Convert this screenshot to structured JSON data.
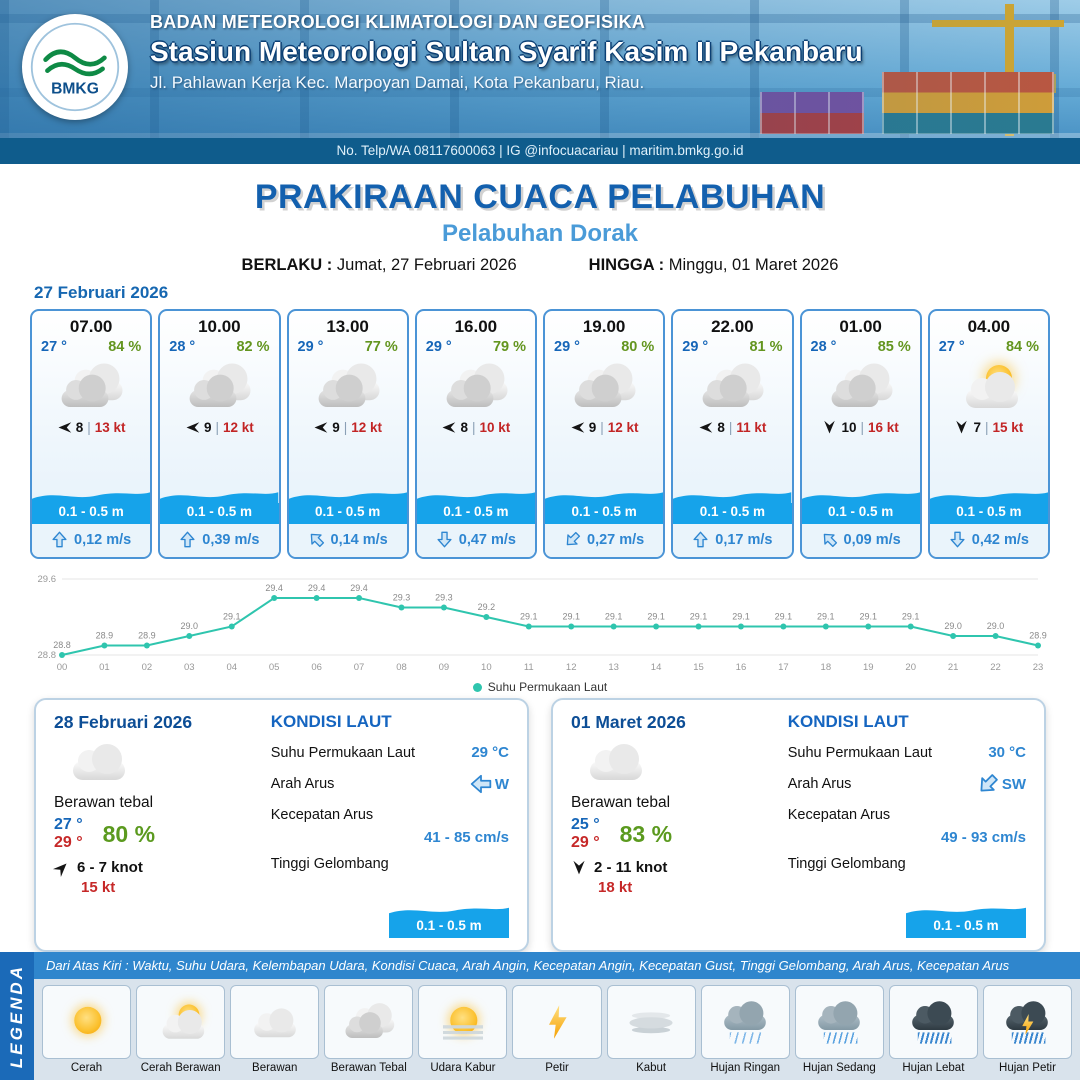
{
  "header": {
    "logo_text": "BMKG",
    "agency": "BADAN METEOROLOGI KLIMATOLOGI DAN GEOFISIKA",
    "station": "Stasiun Meteorologi Sultan Syarif Kasim II Pekanbaru",
    "address": "Jl. Pahlawan Kerja Kec. Marpoyan Damai, Kota Pekanbaru, Riau.",
    "contact": "No. Telp/WA 08117600063 | IG @infocuacariau | maritim.bmkg.go.id"
  },
  "title": {
    "main": "PRAKIRAAN CUACA PELABUHAN",
    "subtitle": "Pelabuhan Dorak",
    "berlaku_label": "BERLAKU :",
    "berlaku_value": "Jumat, 27 Februari 2026",
    "hingga_label": "HINGGA :",
    "hingga_value": "Minggu, 01 Maret 2026"
  },
  "forecast_date": "27 Februari 2026",
  "forecast_cards": [
    {
      "time": "07.00",
      "temp": "27 °",
      "humidity": "84 %",
      "weather_icon": "cloud-thick",
      "wind_dir": "W",
      "wind_speed": "8",
      "gust": "13 kt",
      "wave": "0.1 - 0.5 m",
      "current_dir": "N",
      "current_speed": "0,12 m/s"
    },
    {
      "time": "10.00",
      "temp": "28 °",
      "humidity": "82 %",
      "weather_icon": "cloud-thick",
      "wind_dir": "W",
      "wind_speed": "9",
      "gust": "12 kt",
      "wave": "0.1 - 0.5 m",
      "current_dir": "N",
      "current_speed": "0,39 m/s"
    },
    {
      "time": "13.00",
      "temp": "29 °",
      "humidity": "77 %",
      "weather_icon": "cloud-thick",
      "wind_dir": "W",
      "wind_speed": "9",
      "gust": "12 kt",
      "wave": "0.1 - 0.5 m",
      "current_dir": "NW",
      "current_speed": "0,14 m/s"
    },
    {
      "time": "16.00",
      "temp": "29 °",
      "humidity": "79 %",
      "weather_icon": "cloud-thick",
      "wind_dir": "W",
      "wind_speed": "8",
      "gust": "10 kt",
      "wave": "0.1 - 0.5 m",
      "current_dir": "S",
      "current_speed": "0,47 m/s"
    },
    {
      "time": "19.00",
      "temp": "29 °",
      "humidity": "80 %",
      "weather_icon": "cloud-thick",
      "wind_dir": "W",
      "wind_speed": "9",
      "gust": "12 kt",
      "wave": "0.1 - 0.5 m",
      "current_dir": "SW",
      "current_speed": "0,27 m/s"
    },
    {
      "time": "22.00",
      "temp": "29 °",
      "humidity": "81 %",
      "weather_icon": "cloud-thick",
      "wind_dir": "W",
      "wind_speed": "8",
      "gust": "11 kt",
      "wave": "0.1 - 0.5 m",
      "current_dir": "N",
      "current_speed": "0,17 m/s"
    },
    {
      "time": "01.00",
      "temp": "28 °",
      "humidity": "85 %",
      "weather_icon": "cloud-thick",
      "wind_dir": "S",
      "wind_speed": "10",
      "gust": "16 kt",
      "wave": "0.1 - 0.5 m",
      "current_dir": "NW",
      "current_speed": "0,09 m/s"
    },
    {
      "time": "04.00",
      "temp": "27 °",
      "humidity": "84 %",
      "weather_icon": "sun-cloud",
      "wind_dir": "S",
      "wind_speed": "7",
      "gust": "15 kt",
      "wave": "0.1 - 0.5 m",
      "current_dir": "S",
      "current_speed": "0,42 m/s"
    }
  ],
  "chart_data": {
    "type": "line",
    "x": [
      "00",
      "01",
      "02",
      "03",
      "04",
      "05",
      "06",
      "07",
      "08",
      "09",
      "10",
      "11",
      "12",
      "13",
      "14",
      "15",
      "16",
      "17",
      "18",
      "19",
      "20",
      "21",
      "22",
      "23"
    ],
    "series": [
      {
        "name": "Suhu Permukaan Laut",
        "values": [
          28.8,
          28.9,
          28.9,
          29.0,
          29.1,
          29.4,
          29.4,
          29.4,
          29.3,
          29.3,
          29.2,
          29.1,
          29.1,
          29.1,
          29.1,
          29.1,
          29.1,
          29.1,
          29.1,
          29.1,
          29.1,
          29.0,
          29.0,
          28.9
        ]
      }
    ],
    "ylim": [
      28.8,
      29.6
    ],
    "yticks": [
      28.8,
      29.6
    ],
    "line_color": "#2fc5ae",
    "legend_label": "Suhu Permukaan Laut",
    "legend_position": "bottom",
    "grid": false
  },
  "sea_labels": {
    "title": "KONDISI LAUT",
    "sst": "Suhu Permukaan Laut",
    "current_dir": "Arah Arus",
    "current_speed": "Kecepatan Arus",
    "wave": "Tinggi Gelombang"
  },
  "daily_cards": [
    {
      "date": "28 Februari 2026",
      "weather_icon": "cloud",
      "condition": "Berawan tebal",
      "temp_min": "27 °",
      "temp_max": "29 °",
      "humidity": "80 %",
      "wind_dir": "NE",
      "wind_speed": "6 - 7 knot",
      "gust": "15 kt",
      "sst": "29 °C",
      "current_dir": "W",
      "current_speed": "41 - 85 cm/s",
      "wave": "0.1 - 0.5 m"
    },
    {
      "date": "01 Maret 2026",
      "weather_icon": "cloud",
      "condition": "Berawan tebal",
      "temp_min": "25 °",
      "temp_max": "29 °",
      "humidity": "83 %",
      "wind_dir": "S",
      "wind_speed": "2 - 11 knot",
      "gust": "18 kt",
      "sst": "30 °C",
      "current_dir": "SW",
      "current_speed": "49 - 93 cm/s",
      "wave": "0.1 - 0.5 m"
    }
  ],
  "legend": {
    "bar_label": "LEGENDA",
    "description": "Dari Atas Kiri : Waktu, Suhu Udara, Kelembapan Udara, Kondisi Cuaca, Arah Angin, Kecepatan Angin, Kecepatan Gust, Tinggi Gelombang, Arah Arus, Kecepatan Arus",
    "items": [
      {
        "label": "Cerah",
        "icon": "sun"
      },
      {
        "label": "Cerah Berawan",
        "icon": "sun-cloud"
      },
      {
        "label": "Berawan",
        "icon": "cloud"
      },
      {
        "label": "Berawan Tebal",
        "icon": "cloud-thick"
      },
      {
        "label": "Udara Kabur",
        "icon": "hazy-sun"
      },
      {
        "label": "Petir",
        "icon": "lightning"
      },
      {
        "label": "Kabut",
        "icon": "fog"
      },
      {
        "label": "Hujan Ringan",
        "icon": "rain-light"
      },
      {
        "label": "Hujan Sedang",
        "icon": "rain-moderate"
      },
      {
        "label": "Hujan Lebat",
        "icon": "rain-heavy"
      },
      {
        "label": "Hujan Petir",
        "icon": "thunder-rain"
      }
    ]
  }
}
